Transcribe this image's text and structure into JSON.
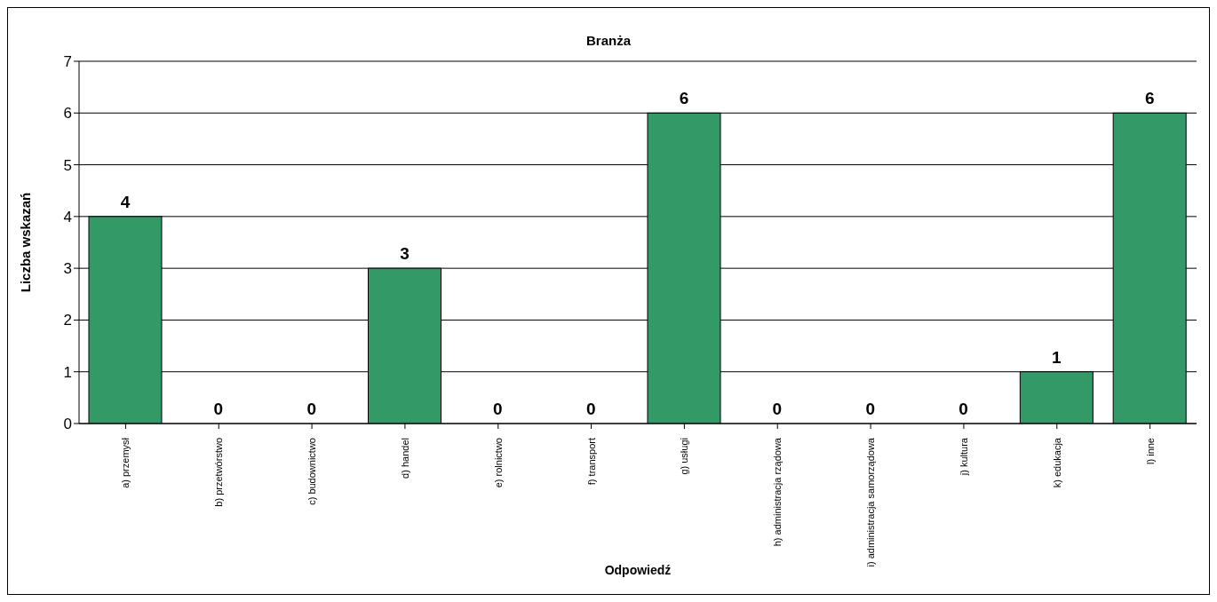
{
  "chart_data": {
    "type": "bar",
    "title": "Branża",
    "xlabel": "Odpowiedź",
    "ylabel": "Liczba wskazań",
    "categories": [
      "a) przemysł",
      "b) przetwórstwo",
      "c) budownictwo",
      "d) handel",
      "e) rolnictwo",
      "f) transport",
      "g) usługi",
      "h) administracja rządowa",
      "i) administracja samorządowa",
      "j) kultura",
      "k) edukacja",
      "l) inne"
    ],
    "values": [
      4,
      0,
      0,
      3,
      0,
      0,
      6,
      0,
      0,
      0,
      1,
      6
    ],
    "color": "#339966",
    "ylim": [
      0,
      7
    ],
    "yticks": [
      0,
      1,
      2,
      3,
      4,
      5,
      6,
      7
    ],
    "grid": "y",
    "data_labels": true
  }
}
